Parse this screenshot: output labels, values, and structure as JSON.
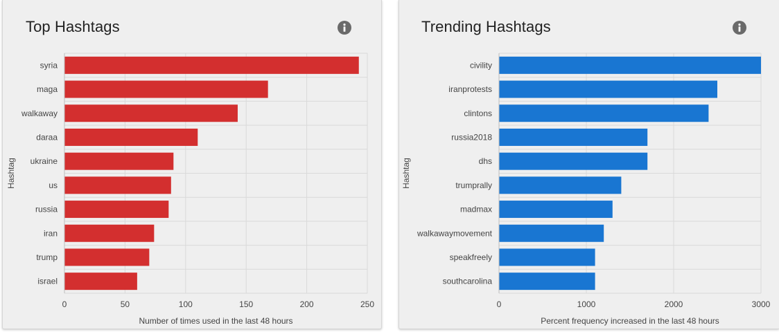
{
  "cards": [
    {
      "title": "Top Hashtags",
      "icon": "info-icon"
    },
    {
      "title": "Trending Hashtags",
      "icon": "info-icon"
    }
  ],
  "chart_data": [
    {
      "type": "bar",
      "orientation": "horizontal",
      "title": "Top Hashtags",
      "ylabel": "Hashtag",
      "xlabel": "Number of times used in the last 48 hours",
      "categories": [
        "syria",
        "maga",
        "walkaway",
        "daraa",
        "ukraine",
        "us",
        "russia",
        "iran",
        "trump",
        "israel"
      ],
      "values": [
        243,
        168,
        143,
        110,
        90,
        88,
        86,
        74,
        70,
        60
      ],
      "xlim": [
        0,
        250
      ],
      "xticks": [
        0,
        50,
        100,
        150,
        200,
        250
      ],
      "color": "#d32f2f",
      "grid": true
    },
    {
      "type": "bar",
      "orientation": "horizontal",
      "title": "Trending Hashtags",
      "ylabel": "Hashtag",
      "xlabel": "Percent frequency increased in the last 48 hours",
      "categories": [
        "civility",
        "iranprotests",
        "clintons",
        "russia2018",
        "dhs",
        "trumprally",
        "madmax",
        "walkawaymovement",
        "speakfreely",
        "southcarolina"
      ],
      "values": [
        3000,
        2500,
        2400,
        1700,
        1700,
        1400,
        1300,
        1200,
        1100,
        1100
      ],
      "xlim": [
        0,
        3000
      ],
      "xticks": [
        0,
        1000,
        2000,
        3000
      ],
      "color": "#1976d2",
      "grid": true
    }
  ]
}
